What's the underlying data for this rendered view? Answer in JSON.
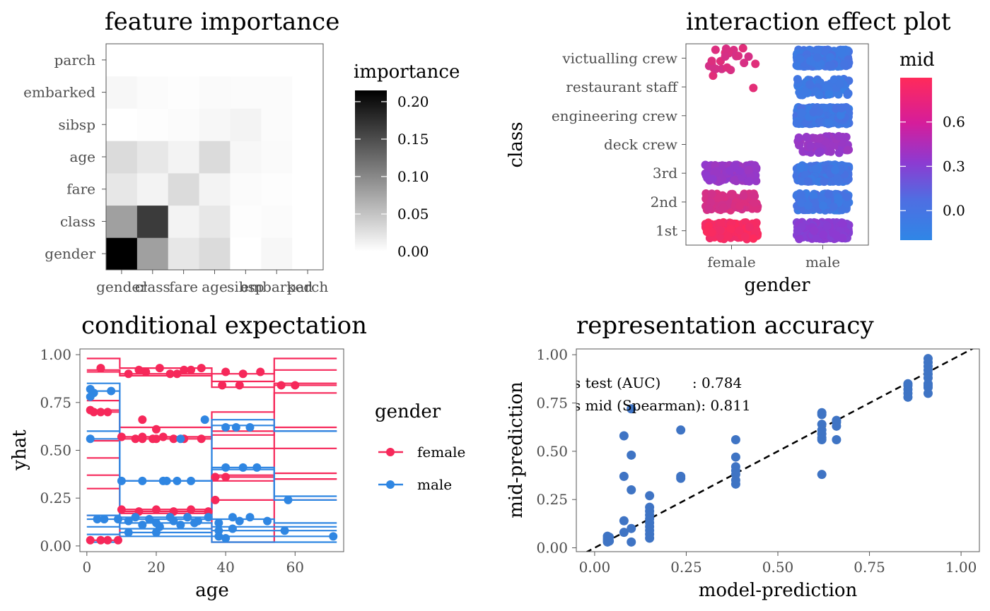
{
  "colors": {
    "female": "#f6285a",
    "male": "#2f86e2",
    "mid_high": "#ff2a5a",
    "mid_mid": "#8d3ad1",
    "mid_low": "#2f86e6",
    "accuracy_point": "#3f74c4"
  },
  "chart_data": [
    {
      "type": "heatmap",
      "title": "feature importance",
      "x_categories": [
        "gender",
        "class",
        "fare",
        "age",
        "sibsp",
        "embarked",
        "parch"
      ],
      "y_categories": [
        "gender",
        "class",
        "fare",
        "age",
        "sibsp",
        "embarked",
        "parch"
      ],
      "matrix": [
        [
          0.215,
          0.08,
          0.02,
          0.03,
          0.0,
          0.007,
          0.0
        ],
        [
          0.08,
          0.165,
          0.01,
          0.02,
          0.002,
          0.003,
          0.0
        ],
        [
          0.02,
          0.01,
          0.03,
          0.01,
          0.003,
          0.002,
          0.0
        ],
        [
          0.03,
          0.02,
          0.01,
          0.03,
          0.007,
          0.004,
          0.0
        ],
        [
          0.0,
          0.002,
          0.003,
          0.007,
          0.01,
          0.003,
          0.0
        ],
        [
          0.007,
          0.003,
          0.002,
          0.004,
          0.003,
          0.003,
          0.0
        ],
        [
          0.0,
          0.0,
          0.0,
          0.0,
          0.0,
          0.0,
          0.0
        ]
      ],
      "legend": {
        "title": "importance",
        "ticks": [
          "0.00",
          "0.05",
          "0.10",
          "0.15",
          "0.20"
        ],
        "tick_values": [
          0,
          0.05,
          0.1,
          0.15,
          0.2
        ],
        "range": [
          0,
          0.215
        ]
      }
    },
    {
      "type": "scatter",
      "title": "interaction effect plot",
      "xlabel": "gender",
      "ylabel": "class",
      "x_categories": [
        "female",
        "male"
      ],
      "y_categories": [
        "1st",
        "2nd",
        "3rd",
        "deck crew",
        "engineering crew",
        "restaurant staff",
        "victualling crew"
      ],
      "cells": [
        {
          "gender": "female",
          "class": "1st",
          "mid": 0.85,
          "n": 150
        },
        {
          "gender": "female",
          "class": "2nd",
          "mid": 0.68,
          "n": 110
        },
        {
          "gender": "female",
          "class": "3rd",
          "mid": 0.35,
          "n": 170
        },
        {
          "gender": "female",
          "class": "restaurant staff",
          "mid": 0.72,
          "n": 2
        },
        {
          "gender": "female",
          "class": "victualling crew",
          "mid": 0.7,
          "n": 22
        },
        {
          "gender": "male",
          "class": "1st",
          "mid": 0.27,
          "n": 170
        },
        {
          "gender": "male",
          "class": "2nd",
          "mid": -0.1,
          "n": 170
        },
        {
          "gender": "male",
          "class": "3rd",
          "mid": -0.1,
          "n": 380
        },
        {
          "gender": "male",
          "class": "deck crew",
          "mid": 0.35,
          "n": 60
        },
        {
          "gender": "male",
          "class": "engineering crew",
          "mid": -0.1,
          "n": 320
        },
        {
          "gender": "male",
          "class": "restaurant staff",
          "mid": -0.12,
          "n": 70
        },
        {
          "gender": "male",
          "class": "victualling crew",
          "mid": -0.1,
          "n": 430
        }
      ],
      "legend": {
        "title": "mid",
        "ticks": [
          "0.0",
          "0.3",
          "0.6"
        ],
        "tick_values": [
          0,
          0.3,
          0.6
        ],
        "range": [
          -0.2,
          0.9
        ]
      }
    },
    {
      "type": "line",
      "title": "conditional expectation",
      "xlabel": "age",
      "ylabel": "yhat",
      "xlim": [
        -2,
        74
      ],
      "ylim": [
        -0.03,
        1.03
      ],
      "x_ticks": [
        0,
        20,
        40,
        60
      ],
      "y_ticks": [
        "0.00",
        "0.25",
        "0.50",
        "0.75",
        "1.00"
      ],
      "y_tick_values": [
        0,
        0.25,
        0.5,
        0.75,
        1
      ],
      "legend": {
        "title": "gender",
        "entries": [
          "female",
          "male"
        ]
      },
      "change_points": [
        9.5,
        36,
        54
      ],
      "series": [
        {
          "gender": "female",
          "levels": [
            0.98,
            0.93,
            0.9,
            0.98
          ],
          "points": [
            [
              4,
              0.93
            ],
            [
              15,
              0.92
            ],
            [
              21,
              0.93
            ],
            [
              28,
              0.92
            ],
            [
              33,
              0.93
            ],
            [
              40,
              0.91
            ],
            [
              50,
              0.91
            ]
          ]
        },
        {
          "gender": "female",
          "levels": [
            0.92,
            0.9,
            0.86,
            0.92
          ],
          "points": [
            [
              17,
              0.91
            ],
            [
              24,
              0.9
            ],
            [
              30,
              0.92
            ],
            [
              45,
              0.9
            ]
          ]
        },
        {
          "gender": "female",
          "levels": [
            0.91,
            0.89,
            0.83,
            0.84
          ],
          "points": [
            [
              12,
              0.9
            ],
            [
              26,
              0.9
            ],
            [
              39,
              0.84
            ],
            [
              44,
              0.84
            ],
            [
              56,
              0.84
            ],
            [
              60,
              0.84
            ]
          ]
        },
        {
          "gender": "female",
          "levels": [
            0.7,
            0.57,
            0.7,
            0.8
          ],
          "points": [
            [
              1,
              0.71
            ],
            [
              2,
              0.7
            ],
            [
              4,
              0.7
            ],
            [
              6,
              0.7
            ]
          ]
        },
        {
          "gender": "female",
          "levels": [
            0.76,
            0.62,
            0.6,
            0.62
          ],
          "points": [
            [
              16,
              0.66
            ],
            [
              20,
              0.61
            ]
          ]
        },
        {
          "gender": "female",
          "levels": [
            0.71,
            0.56,
            0.58,
            0.6
          ],
          "points": [
            [
              10,
              0.57
            ],
            [
              14,
              0.56
            ],
            [
              16,
              0.56
            ],
            [
              20,
              0.56
            ],
            [
              25,
              0.56
            ],
            [
              28,
              0.56
            ]
          ]
        },
        {
          "gender": "female",
          "levels": [
            0.55,
            0.57,
            0.51,
            0.51
          ],
          "points": [
            [
              16,
              0.57
            ],
            [
              19,
              0.56
            ],
            [
              22,
              0.57
            ],
            [
              33,
              0.56
            ]
          ]
        },
        {
          "gender": "female",
          "levels": [
            0.46,
            0.34,
            0.36,
            0.35
          ],
          "points": []
        },
        {
          "gender": "female",
          "levels": [
            0.37,
            0.19,
            0.37,
            0.38
          ],
          "points": [
            [
              37,
              0.36
            ],
            [
              40,
              0.36
            ]
          ]
        },
        {
          "gender": "female",
          "levels": [
            0.3,
            0.19,
            0.34,
            0.35
          ],
          "points": [
            [
              10,
              0.19
            ],
            [
              15,
              0.18
            ],
            [
              20,
              0.19
            ],
            [
              25,
              0.18
            ],
            [
              30,
              0.19
            ],
            [
              35,
              0.18
            ]
          ]
        },
        {
          "gender": "female",
          "levels": [
            0.03,
            0.17,
            0.24,
            0.24
          ],
          "points": [
            [
              1,
              0.03
            ],
            [
              4,
              0.03
            ],
            [
              6,
              0.03
            ],
            [
              9,
              0.03
            ],
            [
              37,
              0.24
            ]
          ]
        },
        {
          "gender": "female",
          "levels": [
            0.16,
            0.18,
            0.02,
            0.85
          ],
          "points": []
        },
        {
          "gender": "male",
          "levels": [
            0.85,
            0.34,
            0.66,
            0.6
          ],
          "points": [
            [
              1,
              0.82
            ],
            [
              2,
              0.8
            ],
            [
              7,
              0.81
            ],
            [
              34,
              0.66
            ]
          ]
        },
        {
          "gender": "male",
          "levels": [
            0.81,
            0.34,
            0.63,
            0.6
          ],
          "points": [
            [
              1,
              0.78
            ],
            [
              10,
              0.34
            ],
            [
              16,
              0.34
            ],
            [
              22,
              0.34
            ],
            [
              26,
              0.34
            ],
            [
              30,
              0.34
            ],
            [
              40,
              0.62
            ],
            [
              43,
              0.62
            ],
            [
              47,
              0.62
            ]
          ]
        },
        {
          "gender": "male",
          "levels": [
            0.6,
            0.34,
            0.4,
            0.26
          ],
          "points": [
            [
              1,
              0.56
            ],
            [
              23,
              0.34
            ],
            [
              27,
              0.56
            ],
            [
              40,
              0.41
            ],
            [
              45,
              0.41
            ],
            [
              49,
              0.41
            ]
          ]
        },
        {
          "gender": "male",
          "levels": [
            0.56,
            0.14,
            0.41,
            0.24
          ],
          "points": [
            [
              3,
              0.14
            ],
            [
              5,
              0.14
            ],
            [
              58,
              0.24
            ]
          ]
        },
        {
          "gender": "male",
          "levels": [
            0.14,
            0.15,
            0.14,
            0.12
          ],
          "points": [
            [
              9,
              0.14
            ],
            [
              14,
              0.15
            ],
            [
              18,
              0.14
            ],
            [
              24,
              0.15
            ],
            [
              29,
              0.15
            ],
            [
              35,
              0.15
            ],
            [
              42,
              0.15
            ],
            [
              47,
              0.15
            ]
          ]
        },
        {
          "gender": "male",
          "levels": [
            0.1,
            0.12,
            0.1,
            0.1
          ],
          "points": [
            [
              12,
              0.13
            ],
            [
              20,
              0.12
            ],
            [
              25,
              0.13
            ],
            [
              32,
              0.13
            ],
            [
              38,
              0.12
            ],
            [
              44,
              0.13
            ],
            [
              52,
              0.13
            ]
          ]
        },
        {
          "gender": "male",
          "levels": [
            0.16,
            0.09,
            0.08,
            0.08
          ],
          "points": [
            [
              16,
              0.11
            ],
            [
              21,
              0.1
            ],
            [
              27,
              0.11
            ],
            [
              31,
              0.12
            ],
            [
              38,
              0.08
            ],
            [
              42,
              0.09
            ],
            [
              57,
              0.08
            ]
          ]
        },
        {
          "gender": "male",
          "levels": [
            0.06,
            0.07,
            0.05,
            0.05
          ],
          "points": [
            [
              12,
              0.07
            ],
            [
              20,
              0.07
            ],
            [
              38,
              0.05
            ],
            [
              40,
              0.04
            ],
            [
              71,
              0.05
            ]
          ]
        },
        {
          "gender": "male",
          "levels": [
            0.02,
            0.05,
            0.02,
            0.02
          ],
          "points": []
        }
      ]
    },
    {
      "type": "scatter",
      "title": "representation accuracy",
      "xlabel": "model-prediction",
      "ylabel": "mid-prediction",
      "xlim": [
        -0.05,
        1.05
      ],
      "ylim": [
        -0.02,
        1.03
      ],
      "x_ticks": [
        "0.00",
        "0.25",
        "0.50",
        "0.75",
        "1.00"
      ],
      "x_tick_values": [
        0,
        0.25,
        0.5,
        0.75,
        1
      ],
      "y_ticks": [
        "0.00",
        "0.25",
        "0.50",
        "0.75",
        "1.00"
      ],
      "y_tick_values": [
        0,
        0.25,
        0.5,
        0.75,
        1
      ],
      "annotations": [
        "s test (AUC)       : 0.784",
        "s mid (Spearman): 0.811"
      ],
      "reference_line": {
        "slope": 1,
        "intercept": 0
      },
      "points": [
        [
          0.035,
          0.03
        ],
        [
          0.035,
          0.04
        ],
        [
          0.035,
          0.05
        ],
        [
          0.035,
          0.06
        ],
        [
          0.04,
          0.035
        ],
        [
          0.04,
          0.055
        ],
        [
          0.08,
          0.08
        ],
        [
          0.08,
          0.14
        ],
        [
          0.08,
          0.37
        ],
        [
          0.08,
          0.58
        ],
        [
          0.1,
          0.72
        ],
        [
          0.1,
          0.48
        ],
        [
          0.1,
          0.3
        ],
        [
          0.1,
          0.1
        ],
        [
          0.1,
          0.03
        ],
        [
          0.15,
          0.05
        ],
        [
          0.15,
          0.07
        ],
        [
          0.15,
          0.09
        ],
        [
          0.15,
          0.11
        ],
        [
          0.15,
          0.13
        ],
        [
          0.15,
          0.15
        ],
        [
          0.15,
          0.17
        ],
        [
          0.15,
          0.19
        ],
        [
          0.15,
          0.21
        ],
        [
          0.15,
          0.27
        ],
        [
          0.235,
          0.36
        ],
        [
          0.235,
          0.37
        ],
        [
          0.235,
          0.61
        ],
        [
          0.385,
          0.33
        ],
        [
          0.385,
          0.35
        ],
        [
          0.385,
          0.38
        ],
        [
          0.385,
          0.4
        ],
        [
          0.385,
          0.42
        ],
        [
          0.385,
          0.47
        ],
        [
          0.385,
          0.56
        ],
        [
          0.62,
          0.38
        ],
        [
          0.62,
          0.56
        ],
        [
          0.62,
          0.57
        ],
        [
          0.62,
          0.59
        ],
        [
          0.62,
          0.61
        ],
        [
          0.62,
          0.64
        ],
        [
          0.62,
          0.69
        ],
        [
          0.62,
          0.7
        ],
        [
          0.66,
          0.56
        ],
        [
          0.66,
          0.63
        ],
        [
          0.66,
          0.65
        ],
        [
          0.66,
          0.66
        ],
        [
          0.855,
          0.78
        ],
        [
          0.855,
          0.8
        ],
        [
          0.855,
          0.82
        ],
        [
          0.855,
          0.84
        ],
        [
          0.855,
          0.85
        ],
        [
          0.91,
          0.8
        ],
        [
          0.91,
          0.83
        ],
        [
          0.91,
          0.84
        ],
        [
          0.91,
          0.85
        ],
        [
          0.91,
          0.88
        ],
        [
          0.91,
          0.9
        ],
        [
          0.91,
          0.92
        ],
        [
          0.91,
          0.94
        ],
        [
          0.91,
          0.96
        ],
        [
          0.91,
          0.98
        ]
      ]
    }
  ]
}
